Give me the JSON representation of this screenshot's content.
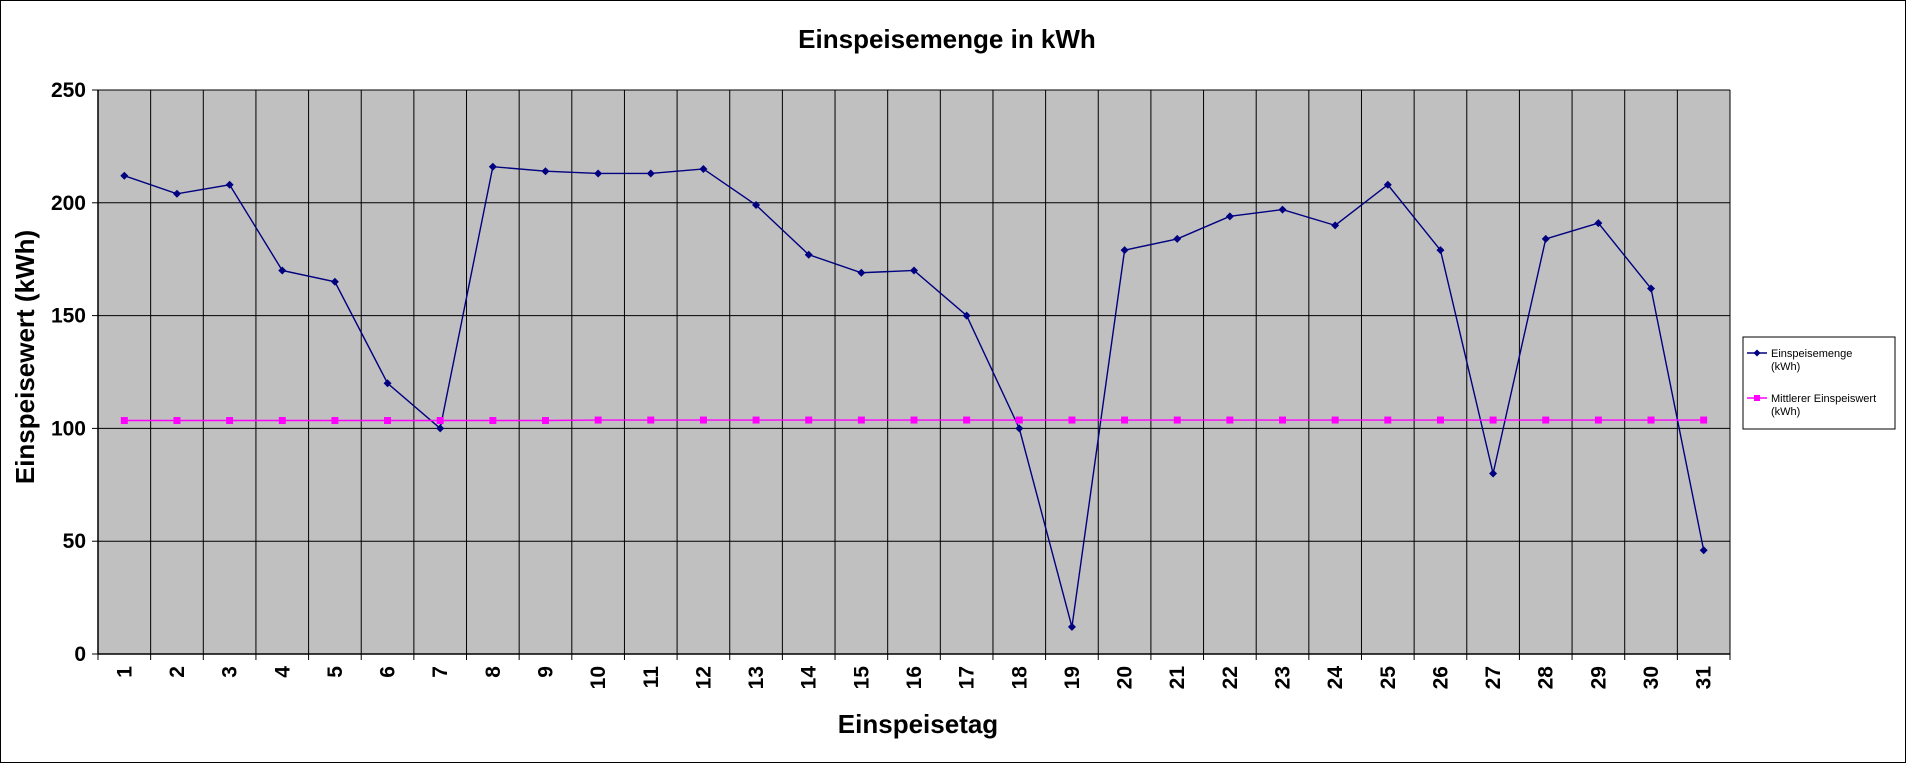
{
  "chart_data": {
    "type": "line",
    "title": "Einspeisemenge in kWh",
    "xlabel": "Einspeisetag",
    "ylabel": "Einspeisewert  (kWh)",
    "x": [
      1,
      2,
      3,
      4,
      5,
      6,
      7,
      8,
      9,
      10,
      11,
      12,
      13,
      14,
      15,
      16,
      17,
      18,
      19,
      20,
      21,
      22,
      23,
      24,
      25,
      26,
      27,
      28,
      29,
      30,
      31
    ],
    "ylim": [
      0,
      250
    ],
    "yticks": [
      0,
      50,
      100,
      150,
      200,
      250
    ],
    "grid": true,
    "legend_position": "right",
    "plot_background": "#c0c0c0",
    "series": [
      {
        "name_lines": [
          "Einspeisemenge",
          "(kWh)"
        ],
        "color": "#000080",
        "marker": "diamond",
        "values": [
          212,
          204,
          208,
          170,
          165,
          120,
          100,
          216,
          214,
          213,
          213,
          215,
          199,
          177,
          169,
          170,
          150,
          100,
          12,
          179,
          184,
          194,
          197,
          190,
          208,
          179,
          80,
          184,
          191,
          162,
          46
        ]
      },
      {
        "name_lines": [
          "Mittlerer Einspeiswert",
          "(kWh)"
        ],
        "color": "#ff00ff",
        "marker": "square",
        "values": [
          103.5,
          103.5,
          103.5,
          103.5,
          103.5,
          103.5,
          103.5,
          103.5,
          103.5,
          103.7,
          103.7,
          103.7,
          103.7,
          103.7,
          103.7,
          103.7,
          103.7,
          103.7,
          103.7,
          103.7,
          103.7,
          103.7,
          103.7,
          103.7,
          103.7,
          103.7,
          103.7,
          103.7,
          103.7,
          103.7,
          103.7
        ]
      }
    ]
  }
}
